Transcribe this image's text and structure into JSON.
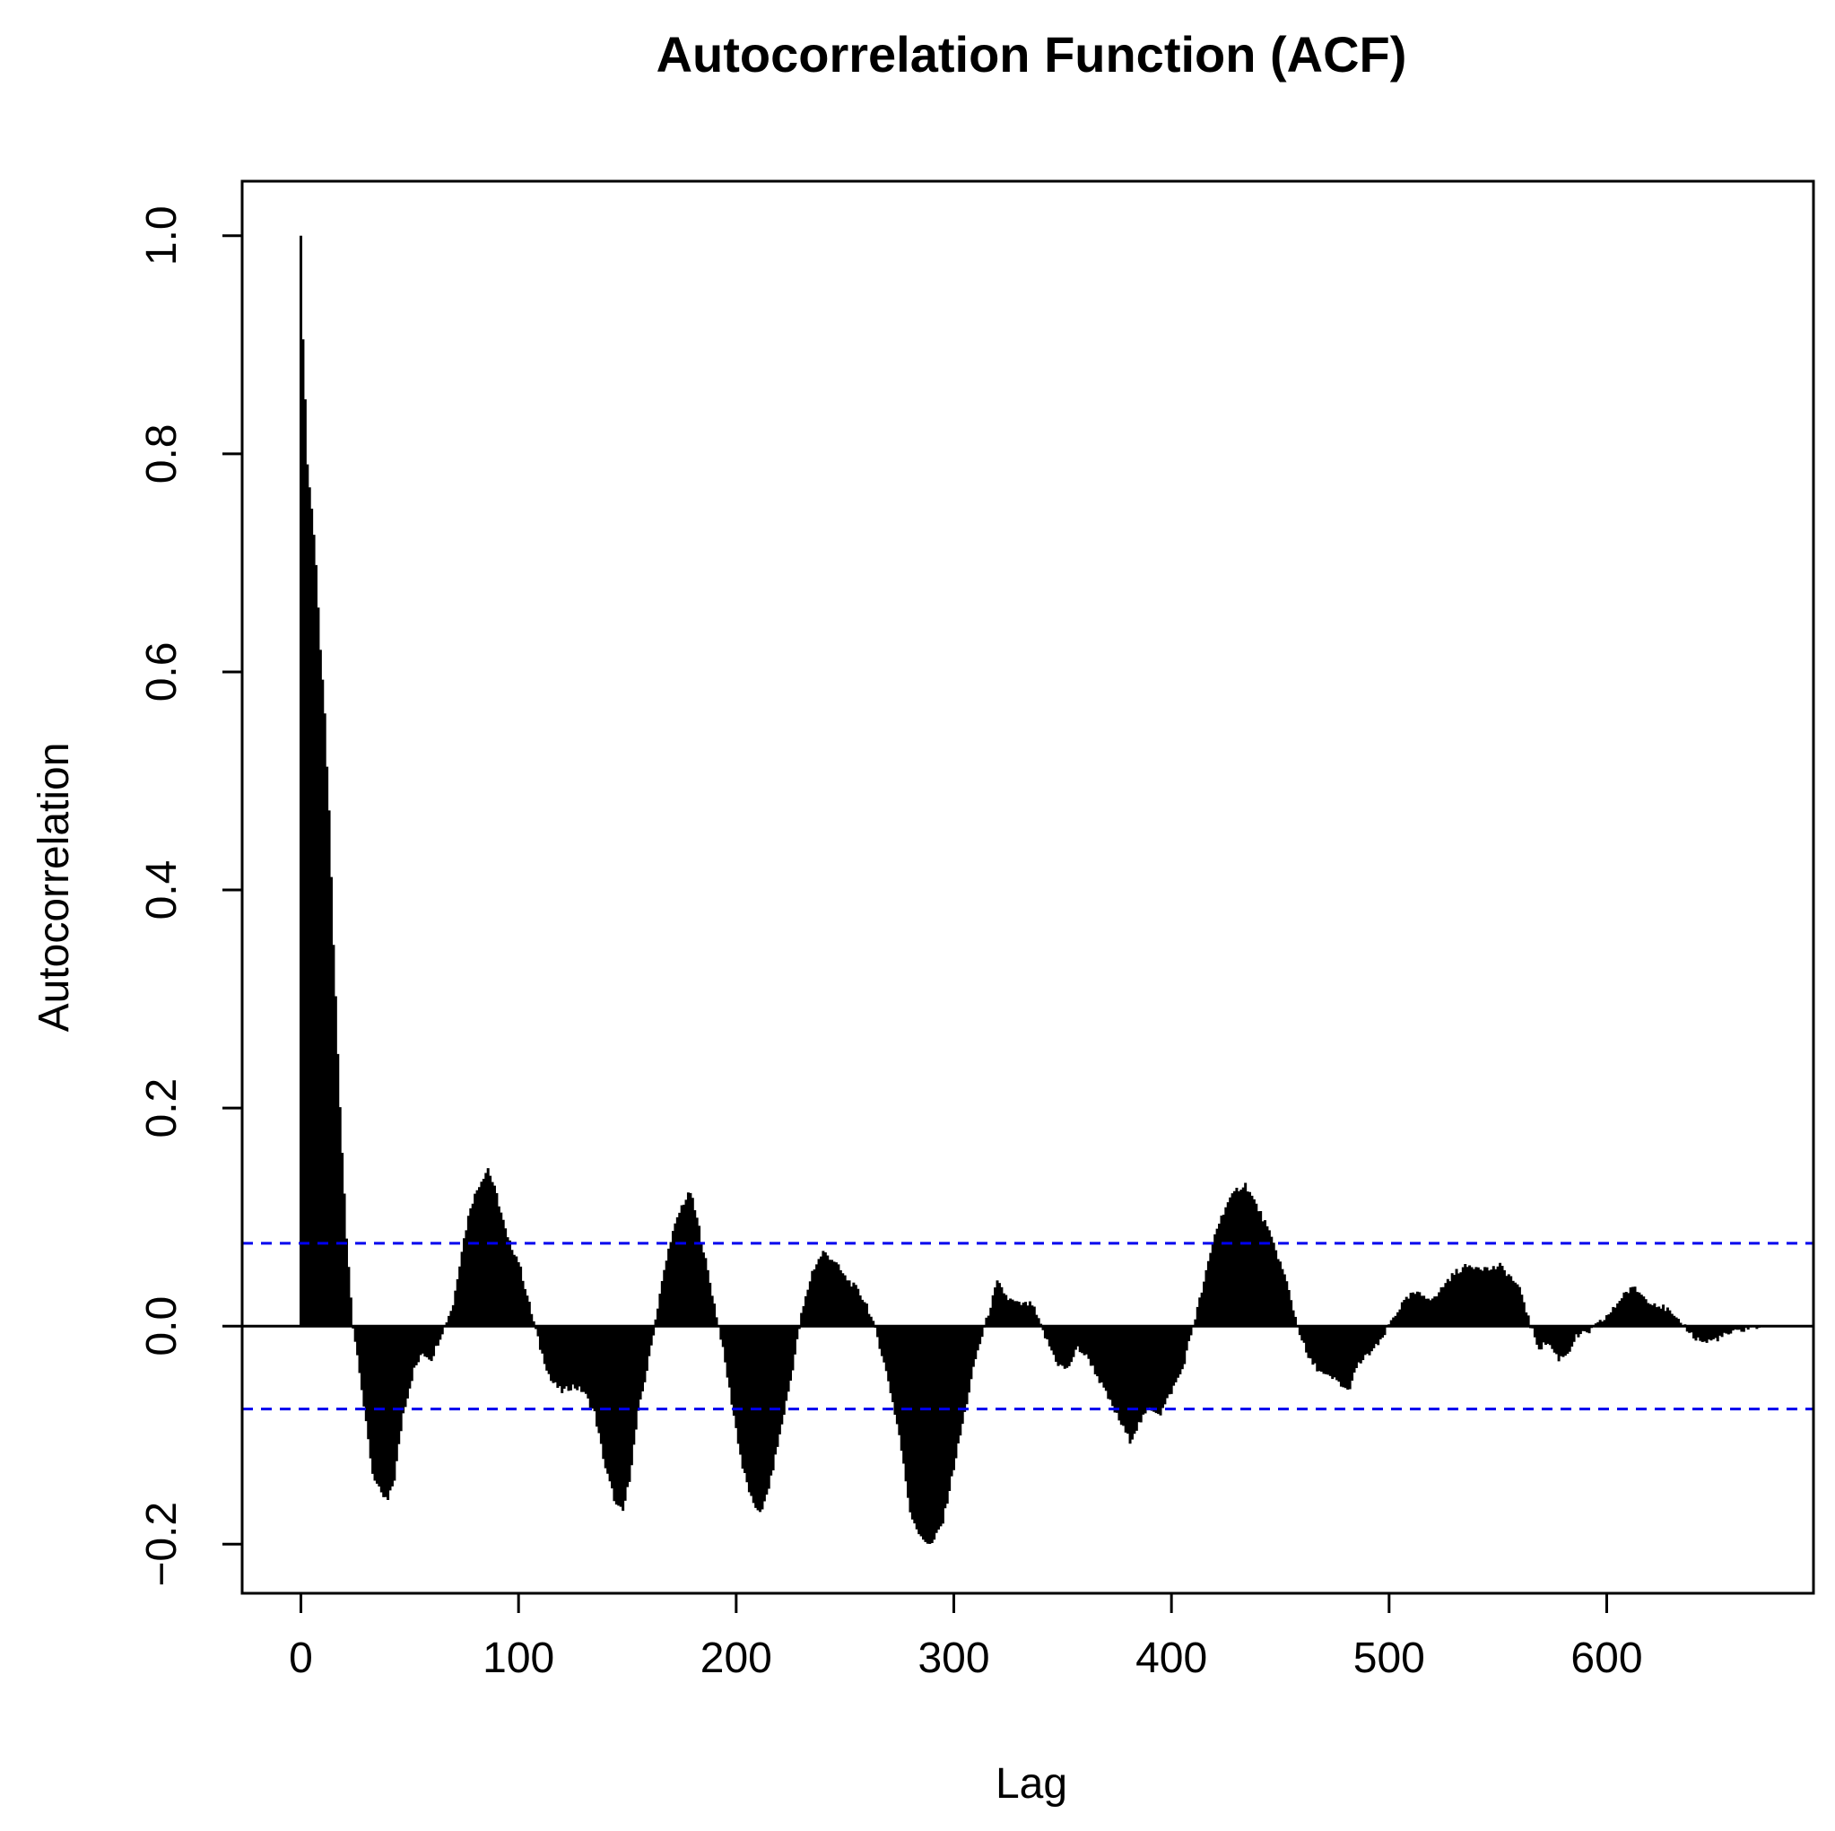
{
  "chart_data": {
    "type": "bar",
    "title": "Autocorrelation Function (ACF)",
    "xlabel": "Lag",
    "ylabel": "Autocorrelation",
    "xlim": [
      -27,
      695
    ],
    "ylim": [
      -0.245,
      1.05
    ],
    "x_ticks": [
      0,
      100,
      200,
      300,
      400,
      500,
      600
    ],
    "x_tick_labels": [
      "0",
      "100",
      "200",
      "300",
      "400",
      "500",
      "600"
    ],
    "y_ticks": [
      -0.2,
      0.0,
      0.2,
      0.4,
      0.6,
      0.8,
      1.0
    ],
    "y_tick_labels": [
      "−0.2",
      "0.0",
      "0.2",
      "0.4",
      "0.6",
      "0.8",
      "1.0"
    ],
    "confidence_bounds": [
      0.076,
      -0.076
    ],
    "colors": {
      "bars": "#000000",
      "confidence_line": "#0000ee",
      "zero_line": "#000000"
    },
    "max_lag": 670,
    "key_points": [
      [
        0,
        1.0
      ],
      [
        1,
        0.905
      ],
      [
        2,
        0.85
      ],
      [
        3,
        0.79
      ],
      [
        5,
        0.75
      ],
      [
        7,
        0.7
      ],
      [
        9,
        0.62
      ],
      [
        11,
        0.56
      ],
      [
        13,
        0.47
      ],
      [
        15,
        0.35
      ],
      [
        18,
        0.2
      ],
      [
        21,
        0.08
      ],
      [
        24,
        0.0
      ],
      [
        27,
        -0.04
      ],
      [
        30,
        -0.09
      ],
      [
        33,
        -0.135
      ],
      [
        37,
        -0.155
      ],
      [
        40,
        -0.16
      ],
      [
        43,
        -0.14
      ],
      [
        47,
        -0.08
      ],
      [
        52,
        -0.04
      ],
      [
        56,
        -0.025
      ],
      [
        60,
        -0.03
      ],
      [
        66,
        0.0
      ],
      [
        70,
        0.02
      ],
      [
        74,
        0.07
      ],
      [
        78,
        0.11
      ],
      [
        82,
        0.13
      ],
      [
        86,
        0.145
      ],
      [
        90,
        0.12
      ],
      [
        95,
        0.08
      ],
      [
        100,
        0.06
      ],
      [
        105,
        0.02
      ],
      [
        110,
        -0.02
      ],
      [
        115,
        -0.05
      ],
      [
        120,
        -0.06
      ],
      [
        125,
        -0.055
      ],
      [
        130,
        -0.06
      ],
      [
        135,
        -0.08
      ],
      [
        140,
        -0.13
      ],
      [
        145,
        -0.165
      ],
      [
        148,
        -0.17
      ],
      [
        151,
        -0.14
      ],
      [
        155,
        -0.08
      ],
      [
        160,
        -0.03
      ],
      [
        165,
        0.03
      ],
      [
        170,
        0.08
      ],
      [
        175,
        0.11
      ],
      [
        179,
        0.123
      ],
      [
        183,
        0.09
      ],
      [
        188,
        0.04
      ],
      [
        193,
        -0.01
      ],
      [
        198,
        -0.07
      ],
      [
        203,
        -0.13
      ],
      [
        208,
        -0.165
      ],
      [
        212,
        -0.17
      ],
      [
        216,
        -0.14
      ],
      [
        220,
        -0.1
      ],
      [
        225,
        -0.05
      ],
      [
        230,
        0.01
      ],
      [
        235,
        0.05
      ],
      [
        240,
        0.068
      ],
      [
        245,
        0.06
      ],
      [
        250,
        0.045
      ],
      [
        255,
        0.035
      ],
      [
        260,
        0.02
      ],
      [
        265,
        -0.01
      ],
      [
        270,
        -0.05
      ],
      [
        275,
        -0.1
      ],
      [
        280,
        -0.17
      ],
      [
        285,
        -0.195
      ],
      [
        290,
        -0.2
      ],
      [
        295,
        -0.18
      ],
      [
        300,
        -0.13
      ],
      [
        305,
        -0.08
      ],
      [
        310,
        -0.03
      ],
      [
        315,
        0.005
      ],
      [
        320,
        0.04
      ],
      [
        325,
        0.025
      ],
      [
        330,
        0.02
      ],
      [
        336,
        0.02
      ],
      [
        342,
        -0.01
      ],
      [
        348,
        -0.035
      ],
      [
        352,
        -0.04
      ],
      [
        357,
        -0.02
      ],
      [
        362,
        -0.03
      ],
      [
        367,
        -0.05
      ],
      [
        372,
        -0.07
      ],
      [
        377,
        -0.09
      ],
      [
        381,
        -0.105
      ],
      [
        385,
        -0.09
      ],
      [
        390,
        -0.075
      ],
      [
        395,
        -0.08
      ],
      [
        400,
        -0.06
      ],
      [
        405,
        -0.04
      ],
      [
        410,
        0.0
      ],
      [
        415,
        0.04
      ],
      [
        420,
        0.085
      ],
      [
        425,
        0.11
      ],
      [
        430,
        0.125
      ],
      [
        434,
        0.13
      ],
      [
        438,
        0.115
      ],
      [
        443,
        0.095
      ],
      [
        448,
        0.07
      ],
      [
        453,
        0.04
      ],
      [
        458,
        0.0
      ],
      [
        463,
        -0.03
      ],
      [
        470,
        -0.045
      ],
      [
        476,
        -0.05
      ],
      [
        481,
        -0.06
      ],
      [
        486,
        -0.035
      ],
      [
        491,
        -0.025
      ],
      [
        496,
        -0.015
      ],
      [
        501,
        0.005
      ],
      [
        506,
        0.02
      ],
      [
        511,
        0.03
      ],
      [
        516,
        0.028
      ],
      [
        521,
        0.025
      ],
      [
        526,
        0.04
      ],
      [
        531,
        0.05
      ],
      [
        536,
        0.055
      ],
      [
        541,
        0.055
      ],
      [
        546,
        0.052
      ],
      [
        551,
        0.055
      ],
      [
        556,
        0.045
      ],
      [
        561,
        0.03
      ],
      [
        565,
        0.0
      ],
      [
        569,
        -0.02
      ],
      [
        573,
        -0.015
      ],
      [
        578,
        -0.03
      ],
      [
        582,
        -0.025
      ],
      [
        586,
        -0.01
      ],
      [
        592,
        -0.005
      ],
      [
        598,
        0.005
      ],
      [
        603,
        0.015
      ],
      [
        608,
        0.03
      ],
      [
        613,
        0.035
      ],
      [
        618,
        0.025
      ],
      [
        623,
        0.02
      ],
      [
        628,
        0.015
      ],
      [
        632,
        0.005
      ],
      [
        636,
        0.0
      ],
      [
        640,
        -0.01
      ],
      [
        645,
        -0.015
      ],
      [
        650,
        -0.012
      ],
      [
        655,
        -0.008
      ],
      [
        660,
        -0.005
      ],
      [
        665,
        -0.002
      ],
      [
        670,
        0.0
      ]
    ]
  }
}
